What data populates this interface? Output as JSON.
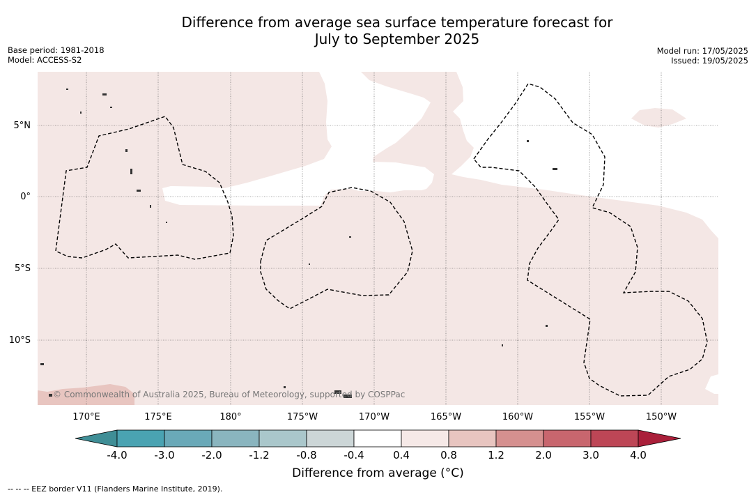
{
  "title_line1": "Difference from average sea surface temperature forecast for",
  "title_line2": "July to September 2025",
  "meta_left": {
    "base_period": "Base period: 1981-2018",
    "model": "Model: ACCESS-S2"
  },
  "meta_right": {
    "model_run": "Model run: 17/05/2025",
    "issued": "Issued: 19/05/2025"
  },
  "lat_labels": [
    "5°N",
    "0°",
    "5°S",
    "10°S"
  ],
  "lon_labels": [
    "170°E",
    "175°E",
    "180°",
    "175°W",
    "170°W",
    "165°W",
    "160°W",
    "155°W",
    "150°W"
  ],
  "copyright": "© Commonwealth of Australia 2025, Bureau of Meteorology, supported by COSPPac",
  "colorbar": {
    "ticks": [
      "-4.0",
      "-3.0",
      "-2.0",
      "-1.2",
      "-0.8",
      "-0.4",
      "0.4",
      "0.8",
      "1.2",
      "2.0",
      "3.0",
      "4.0"
    ],
    "colors": [
      "#3f8e96",
      "#4aa3b2",
      "#6aa9b8",
      "#8ab5bf",
      "#aac7cb",
      "#ccd6d7",
      "#ffffff",
      "#f6e9e7",
      "#e8c5c0",
      "#d5908f",
      "#c8666e",
      "#bd4656",
      "#aa1f3a"
    ],
    "label": "Difference from average (°C)"
  },
  "footer": "--  --  -- EEZ border V11 (Flanders Marine Institute, 2019)."
}
